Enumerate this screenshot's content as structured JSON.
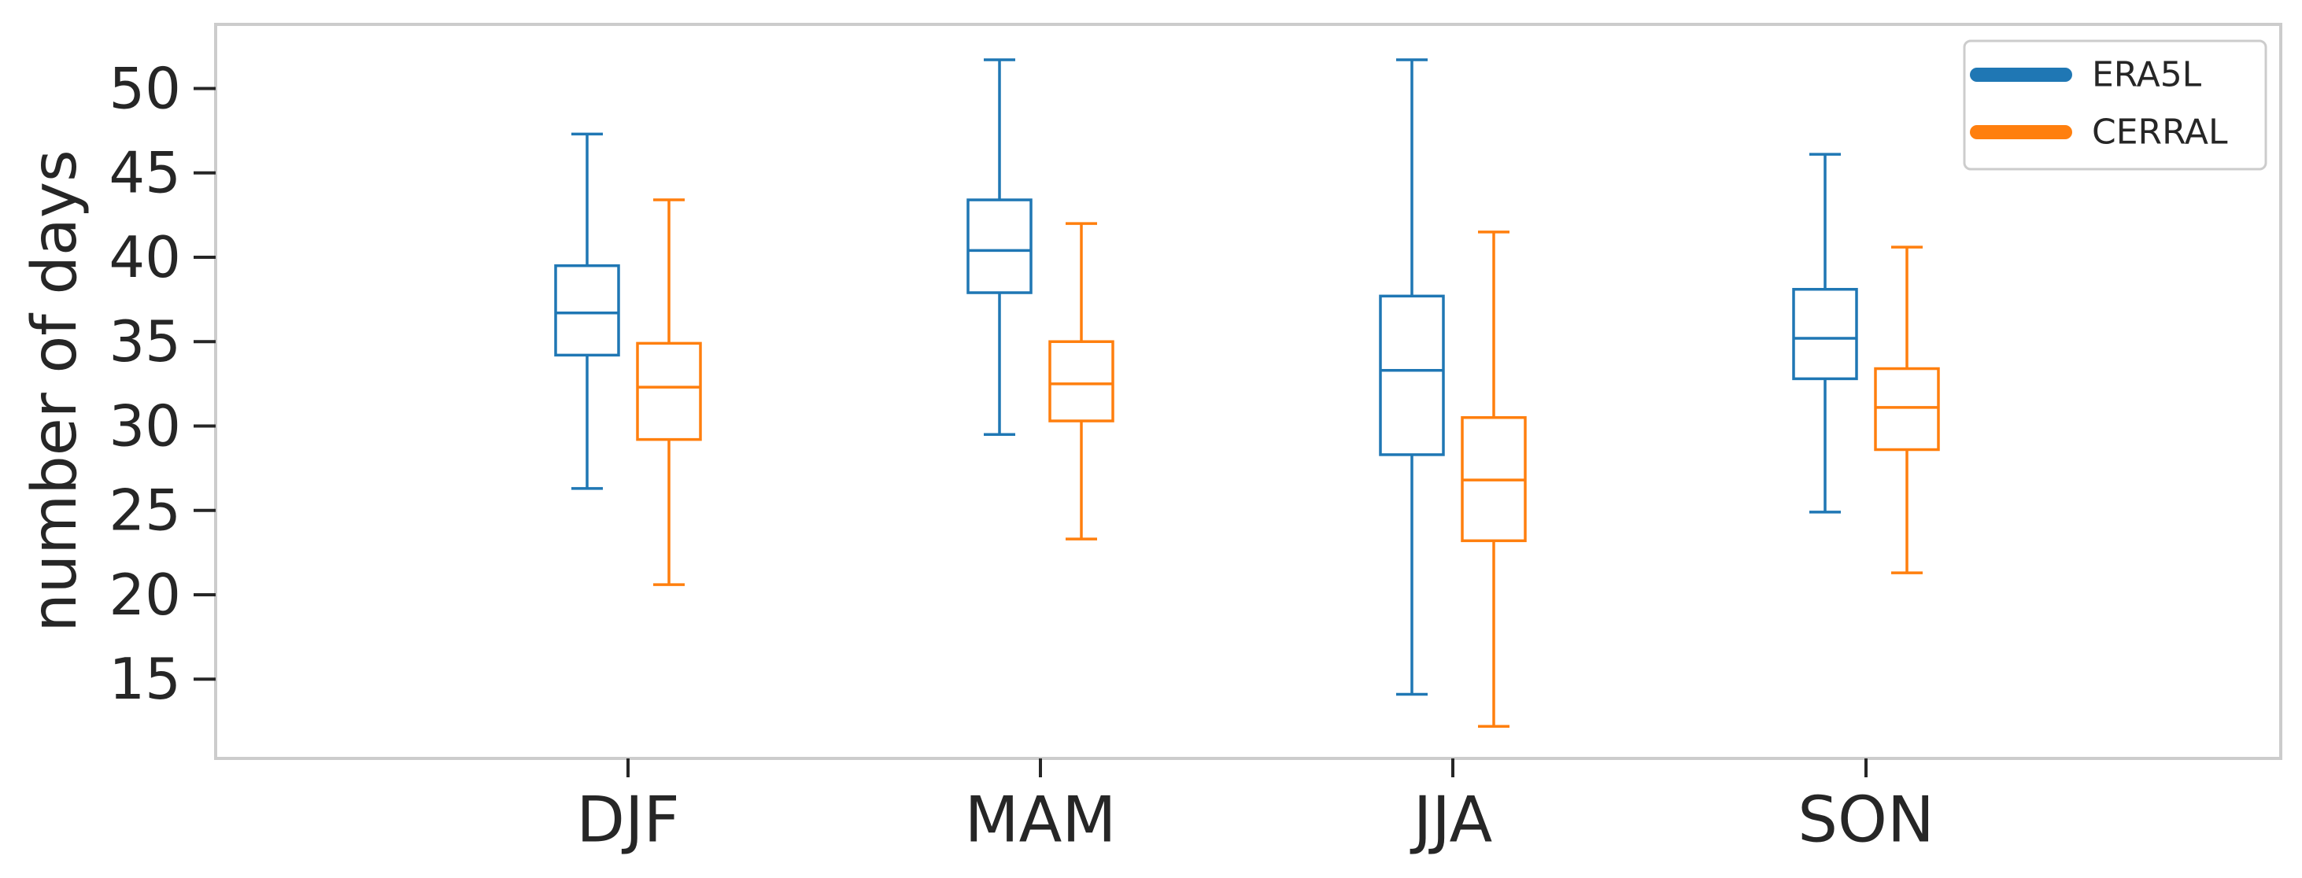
{
  "chart_data": {
    "type": "boxplot",
    "title": "",
    "xlabel": "",
    "ylabel": "number of days",
    "categories": [
      "DJF",
      "MAM",
      "JJA",
      "SON"
    ],
    "ylim": [
      10.3,
      53.8
    ],
    "yticks": [
      15,
      20,
      25,
      30,
      35,
      40,
      45,
      50
    ],
    "grid": false,
    "legend_position": "top-right",
    "series": [
      {
        "name": "ERA5L",
        "color": "#1f77b4",
        "boxes": [
          {
            "whisker_low": 26.3,
            "q1": 34.2,
            "median": 36.7,
            "q3": 39.5,
            "whisker_high": 47.3
          },
          {
            "whisker_low": 29.5,
            "q1": 37.9,
            "median": 40.4,
            "q3": 43.4,
            "whisker_high": 51.7
          },
          {
            "whisker_low": 14.1,
            "q1": 28.3,
            "median": 33.3,
            "q3": 37.7,
            "whisker_high": 51.7
          },
          {
            "whisker_low": 24.9,
            "q1": 32.8,
            "median": 35.2,
            "q3": 38.1,
            "whisker_high": 46.1
          }
        ]
      },
      {
        "name": "CERRAL",
        "color": "#ff7f0e",
        "boxes": [
          {
            "whisker_low": 20.6,
            "q1": 29.2,
            "median": 32.3,
            "q3": 34.9,
            "whisker_high": 43.4
          },
          {
            "whisker_low": 23.3,
            "q1": 30.3,
            "median": 32.5,
            "q3": 35.0,
            "whisker_high": 42.0
          },
          {
            "whisker_low": 12.2,
            "q1": 23.2,
            "median": 26.8,
            "q3": 30.5,
            "whisker_high": 41.5
          },
          {
            "whisker_low": 21.3,
            "q1": 28.6,
            "median": 31.1,
            "q3": 33.4,
            "whisker_high": 40.6
          }
        ]
      }
    ]
  }
}
